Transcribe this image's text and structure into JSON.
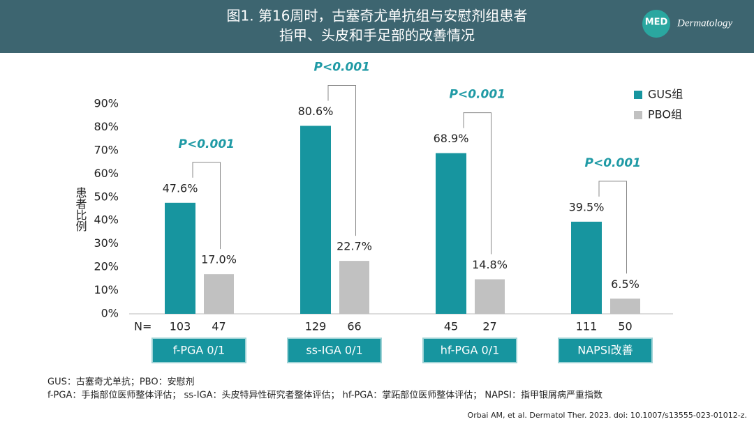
{
  "header": {
    "title_lines": [
      "图1. 第16周时，古塞奇尤单抗组与安慰剂组患者",
      "指甲、头皮和手足部的改善情况"
    ],
    "logo": "MED",
    "brand": "Dermatology"
  },
  "chart_data": {
    "type": "bar",
    "y_label": "患者比例",
    "categories": [
      "f-PGA 0/1",
      "ss-IGA 0/1",
      "hf-PGA 0/1",
      "NAPSI改善"
    ],
    "series": [
      {
        "name": "GUS组",
        "color": "#17959f",
        "values": [
          47.6,
          80.6,
          68.9,
          39.5
        ],
        "value_labels": [
          "47.6%",
          "80.6%",
          "68.9%",
          "39.5%"
        ],
        "n_values": [
          103,
          129,
          45,
          111
        ]
      },
      {
        "name": "PBO组",
        "color": "#c1c1c1",
        "values": [
          17.0,
          22.7,
          14.8,
          6.5
        ],
        "value_labels": [
          "17.0%",
          "22.7%",
          "14.8%",
          "6.5%"
        ],
        "n_values": [
          47,
          66,
          27,
          50
        ]
      }
    ],
    "n_label": "N=",
    "annotations": [
      "P<0.001",
      "P<0.001",
      "P<0.001",
      "P<0.001"
    ],
    "ylim": [
      0,
      90
    ],
    "yticks": [
      {
        "value": 0,
        "label": "0%"
      },
      {
        "value": 10,
        "label": "10%"
      },
      {
        "value": 20,
        "label": "20%"
      },
      {
        "value": 30,
        "label": "30%"
      },
      {
        "value": 40,
        "label": "40%"
      },
      {
        "value": 50,
        "label": "50%"
      },
      {
        "value": 60,
        "label": "60%"
      },
      {
        "value": 70,
        "label": "70%"
      },
      {
        "value": 80,
        "label": "80%"
      },
      {
        "value": 90,
        "label": "90%"
      }
    ],
    "grid": false,
    "legend": "upper right"
  },
  "footnotes": [
    "GUS：古塞奇尤单抗；PBO：安慰剂",
    "f-PGA：手指部位医师整体评估； ss-IGA：头皮特异性研究者整体评估； hf-PGA：掌跖部位医师整体评估； NAPSI：指甲银屑病严重指数"
  ],
  "citation": "Orbai AM, et al. Dermatol Ther. 2023. doi: 10.1007/s13555-023-01012-z."
}
